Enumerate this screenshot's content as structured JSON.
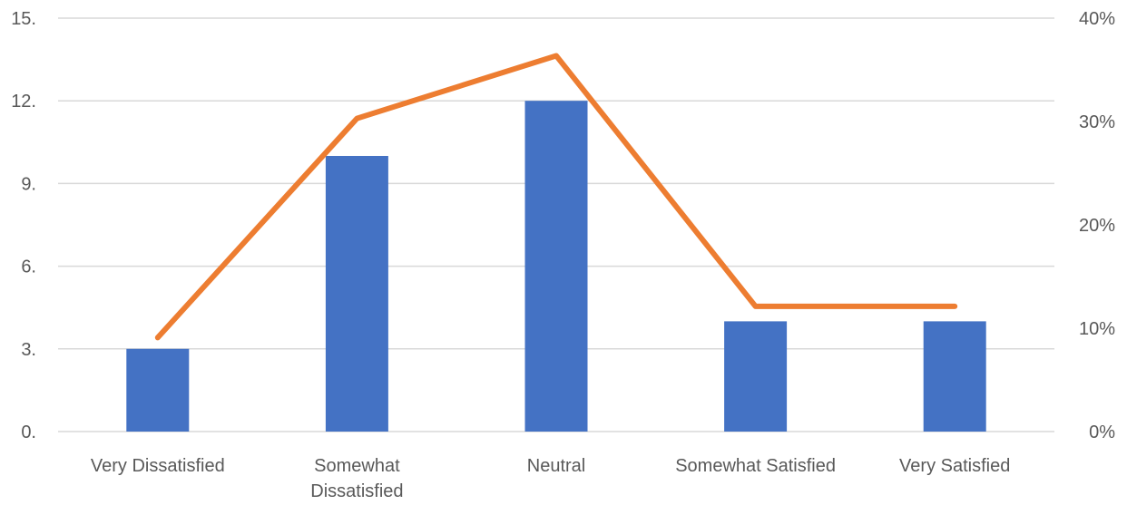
{
  "chart_data": {
    "type": "bar",
    "title": "",
    "xlabel": "",
    "ylabel": "",
    "categories": [
      [
        "Very Dissatisfied"
      ],
      [
        "Somewhat",
        "Dissatisfied"
      ],
      [
        "Neutral"
      ],
      [
        "Somewhat Satisfied"
      ],
      [
        "Very Satisfied"
      ]
    ],
    "series": [
      {
        "type": "bar",
        "axis": "left",
        "color": "#4472c4",
        "values": [
          3,
          10,
          12,
          4,
          4
        ]
      },
      {
        "type": "line",
        "axis": "right",
        "color": "#ed7d31",
        "values": [
          0.0909,
          0.303,
          0.3636,
          0.1212,
          0.1212
        ]
      }
    ],
    "ylim": [
      0,
      15
    ],
    "y_ticks": [
      0,
      3,
      6,
      9,
      12,
      15
    ],
    "y_tick_labels": [
      "0.",
      "3.",
      "6.",
      "9.",
      "12.",
      "15."
    ],
    "y2lim": [
      0,
      0.4
    ],
    "y2_ticks": [
      0,
      0.1,
      0.2,
      0.3,
      0.4
    ],
    "y2_tick_labels": [
      "0%",
      "10%",
      "20%",
      "30%",
      "40%"
    ],
    "grid": true,
    "legend": "none"
  }
}
